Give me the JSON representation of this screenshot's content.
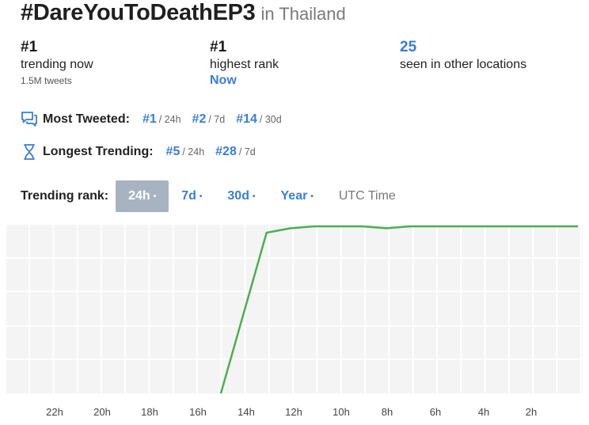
{
  "title": {
    "hashtag": "#DareYouToDeathEP3",
    "location": "in Thailand"
  },
  "stats": [
    {
      "value": "#1",
      "label": "trending now",
      "sub": "1.5M tweets"
    },
    {
      "value": "#1",
      "label": "highest rank",
      "sub": "Now"
    },
    {
      "value": "25",
      "label": "seen in other locations"
    }
  ],
  "most_tweeted": {
    "label": "Most Tweeted:",
    "icon": "chat-bubbles-icon",
    "ranks": [
      {
        "rank": "#1",
        "period": "/ 24h"
      },
      {
        "rank": "#2",
        "period": "/ 7d"
      },
      {
        "rank": "#14",
        "period": "/ 30d"
      }
    ]
  },
  "longest_trending": {
    "label": "Longest Trending:",
    "icon": "hourglass-icon",
    "ranks": [
      {
        "rank": "#5",
        "period": "/ 24h"
      },
      {
        "rank": "#28",
        "period": "/ 7d"
      }
    ]
  },
  "range_tabs": {
    "label": "Trending rank:",
    "options": [
      "24h",
      "7d",
      "30d",
      "Year"
    ],
    "selected": "24h",
    "dot": "•",
    "timezone": "UTC Time"
  },
  "colors": {
    "accent": "#3b7dd8",
    "line": "#4caf50",
    "grid_bg": "#f4f4f4",
    "active_tab": "#a8b3c2"
  },
  "chart_data": {
    "type": "line",
    "x_tick_labels": [
      "22h",
      "20h",
      "18h",
      "16h",
      "14h",
      "12h",
      "10h",
      "8h",
      "6h",
      "4h",
      "2h"
    ],
    "x_hours_ago": [
      24,
      23.5,
      23,
      22,
      21,
      20,
      19,
      18,
      17,
      16,
      15,
      14,
      13.5,
      13,
      12,
      11,
      10,
      9,
      8,
      7,
      6,
      5,
      4,
      3,
      2,
      1,
      0
    ],
    "series": [
      {
        "values": [
          null,
          null,
          null,
          null,
          null,
          null,
          null,
          null,
          null,
          null,
          null,
          null,
          null,
          2,
          1.3,
          1,
          1,
          1,
          1.3,
          1,
          1,
          1,
          1,
          1,
          1,
          1,
          1
        ]
      }
    ],
    "xlabel": "",
    "ylabel": "",
    "y_scale": "rank (1 at top)",
    "grid": true
  }
}
